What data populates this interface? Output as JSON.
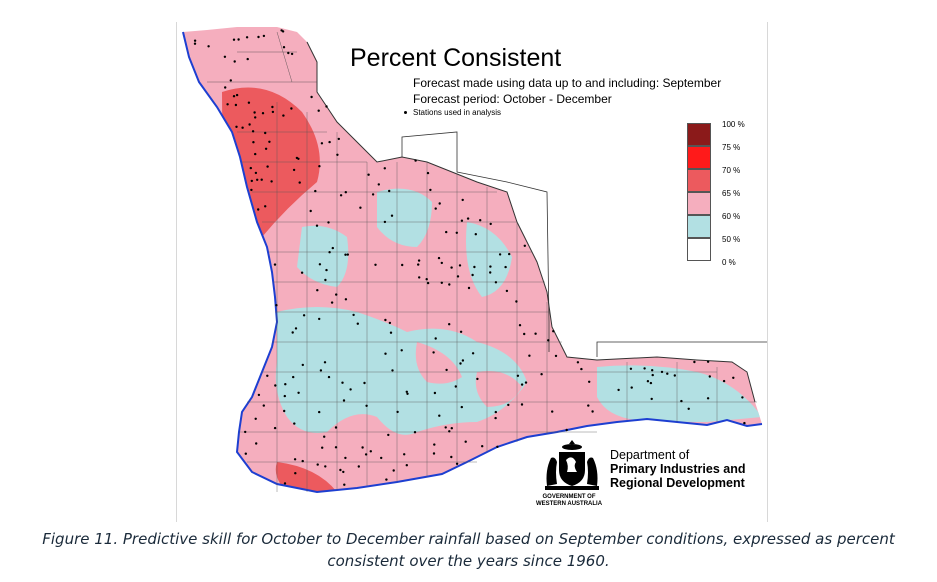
{
  "title": "Percent Consistent",
  "forecast_line": "Forecast made using data up to and including: September",
  "period_line": "Forecast period: October - December",
  "stations_legend": "Stations used in analysis",
  "legend": {
    "labels": [
      "100 %",
      "75 %",
      "70 %",
      "65 %",
      "60 %",
      "50 %",
      "0 %"
    ],
    "colors": [
      "#8b1a1a",
      "#ff1a1a",
      "#ec5a5e",
      "#f5aebe",
      "#b2e0e3",
      "#ffffff"
    ]
  },
  "department": {
    "line1": "Department of",
    "line2": "Primary Industries and",
    "line3": "Regional Development",
    "govt_line1": "GOVERNMENT OF",
    "govt_line2": "WESTERN AUSTRALIA"
  },
  "caption": {
    "line1": "Figure 11. Predictive skill for October to December rainfall based on September conditions, expressed as percent",
    "line2": "consistent over the years since 1960."
  },
  "colors": {
    "ocean_line": "#1d3fd1",
    "pink": "#f5aebe",
    "red": "#ec5a5e",
    "cyan": "#b2e0e3",
    "boundary": "#333333"
  }
}
